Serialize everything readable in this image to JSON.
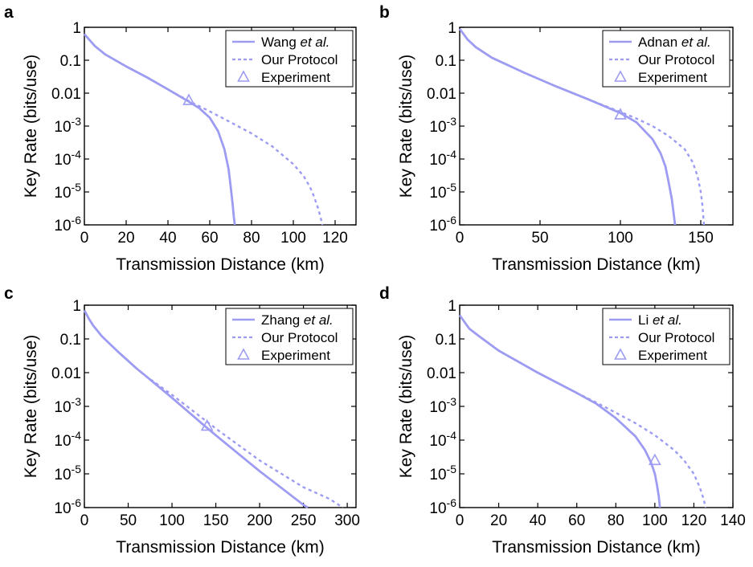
{
  "figure": {
    "line_color": "#9d9cf2"
  },
  "chart_data": [
    {
      "panel": "a",
      "type": "line",
      "xlabel": "Transmission Distance (km)",
      "ylabel": "Key Rate (bits/use)",
      "xlim": [
        0,
        130
      ],
      "ylim": [
        1e-06,
        1
      ],
      "yscale": "log",
      "xticks": [
        0,
        20,
        40,
        60,
        80,
        100,
        120
      ],
      "legend_position": "top-right",
      "series": [
        {
          "name": "Wang",
          "name_suffix": "et al.",
          "style": "solid",
          "x": [
            0,
            5,
            10,
            20,
            30,
            40,
            50,
            55,
            60,
            64,
            67,
            69,
            70,
            71,
            71.5,
            72
          ],
          "y": [
            0.62,
            0.27,
            0.15,
            0.065,
            0.03,
            0.013,
            0.0055,
            0.0035,
            0.0018,
            0.0007,
            0.0002,
            5e-05,
            1.5e-05,
            4e-06,
            1.8e-06,
            1e-06
          ]
        },
        {
          "name": "Our Protocol",
          "style": "dotted",
          "x": [
            0,
            5,
            10,
            20,
            30,
            40,
            50,
            60,
            70,
            80,
            90,
            100,
            105,
            108,
            110,
            112,
            113,
            114
          ],
          "y": [
            0.62,
            0.27,
            0.15,
            0.065,
            0.03,
            0.013,
            0.0058,
            0.0028,
            0.0013,
            0.0006,
            0.00024,
            7e-05,
            3e-05,
            1.4e-05,
            7e-06,
            3e-06,
            1.7e-06,
            1e-06
          ]
        },
        {
          "name": "Experiment",
          "style": "marker",
          "x": [
            50
          ],
          "y": [
            0.006
          ]
        }
      ]
    },
    {
      "panel": "b",
      "type": "line",
      "xlabel": "Transmission Distance (km)",
      "ylabel": "Key Rate (bits/use)",
      "xlim": [
        0,
        170
      ],
      "ylim": [
        1e-06,
        1
      ],
      "yscale": "log",
      "xticks": [
        0,
        50,
        100,
        150
      ],
      "legend_position": "top-right",
      "series": [
        {
          "name": "Adnan",
          "name_suffix": "et al.",
          "style": "solid",
          "x": [
            0,
            5,
            10,
            20,
            40,
            60,
            80,
            100,
            110,
            120,
            125,
            128,
            130,
            132,
            133,
            134
          ],
          "y": [
            0.9,
            0.42,
            0.25,
            0.12,
            0.042,
            0.016,
            0.0065,
            0.0025,
            0.0013,
            0.0004,
            0.00015,
            6e-05,
            2e-05,
            6e-06,
            2.5e-06,
            1e-06
          ]
        },
        {
          "name": "Our Protocol",
          "style": "dotted",
          "x": [
            0,
            5,
            10,
            20,
            40,
            60,
            80,
            100,
            110,
            120,
            130,
            140,
            145,
            148,
            150,
            151,
            152
          ],
          "y": [
            0.9,
            0.42,
            0.25,
            0.12,
            0.042,
            0.016,
            0.0065,
            0.0027,
            0.0017,
            0.001,
            0.0005,
            0.0002,
            8e-05,
            3e-05,
            1e-05,
            4e-06,
            1e-06
          ]
        },
        {
          "name": "Experiment",
          "style": "marker",
          "x": [
            100
          ],
          "y": [
            0.0022
          ]
        }
      ]
    },
    {
      "panel": "c",
      "type": "line",
      "xlabel": "Transmission Distance (km)",
      "ylabel": "Key Rate (bits/use)",
      "xlim": [
        0,
        310
      ],
      "ylim": [
        1e-06,
        1
      ],
      "yscale": "log",
      "xticks": [
        0,
        50,
        100,
        150,
        200,
        250,
        300
      ],
      "legend_position": "top-right",
      "series": [
        {
          "name": "Zhang",
          "name_suffix": "et al.",
          "style": "solid",
          "x": [
            0,
            5,
            10,
            20,
            40,
            60,
            70,
            100,
            140,
            150,
            200,
            250,
            255
          ],
          "y": [
            0.7,
            0.4,
            0.25,
            0.12,
            0.038,
            0.013,
            0.008,
            0.0018,
            0.00023,
            0.00014,
            1.2e-05,
            1.2e-06,
            1e-06
          ]
        },
        {
          "name": "Our Protocol",
          "style": "dotted",
          "x": [
            0,
            5,
            10,
            20,
            40,
            60,
            70,
            100,
            140,
            150,
            200,
            250,
            280,
            295
          ],
          "y": [
            0.7,
            0.4,
            0.25,
            0.12,
            0.038,
            0.013,
            0.008,
            0.0022,
            0.00035,
            0.00022,
            2.5e-05,
            4e-06,
            1.8e-06,
            1e-06
          ]
        },
        {
          "name": "Experiment",
          "style": "marker",
          "x": [
            140
          ],
          "y": [
            0.00026
          ]
        }
      ]
    },
    {
      "panel": "d",
      "type": "line",
      "xlabel": "Transmission Distance (km)",
      "ylabel": "Key Rate (bits/use)",
      "xlim": [
        0,
        140
      ],
      "ylim": [
        1e-06,
        1
      ],
      "yscale": "log",
      "xticks": [
        0,
        20,
        40,
        60,
        80,
        100,
        120,
        140
      ],
      "legend_position": "top-right",
      "series": [
        {
          "name": "Li",
          "name_suffix": "et al.",
          "style": "solid",
          "x": [
            0,
            5,
            10,
            20,
            40,
            60,
            70,
            80,
            90,
            95,
            98,
            100,
            101,
            102,
            102.6
          ],
          "y": [
            0.5,
            0.2,
            0.12,
            0.045,
            0.01,
            0.0025,
            0.0012,
            0.00045,
            0.00013,
            5e-05,
            2.2e-05,
            1e-05,
            5e-06,
            2.2e-06,
            1e-06
          ]
        },
        {
          "name": "Our Protocol",
          "style": "dotted",
          "x": [
            0,
            5,
            10,
            20,
            40,
            60,
            70,
            80,
            90,
            100,
            110,
            115,
            120,
            123,
            125,
            126
          ],
          "y": [
            0.5,
            0.2,
            0.12,
            0.045,
            0.01,
            0.0025,
            0.0013,
            0.00065,
            0.00032,
            0.00014,
            5e-05,
            2.5e-05,
            1e-05,
            4e-06,
            1.8e-06,
            1e-06
          ]
        },
        {
          "name": "Experiment",
          "style": "marker",
          "x": [
            100
          ],
          "y": [
            2.5e-05
          ]
        }
      ]
    }
  ]
}
